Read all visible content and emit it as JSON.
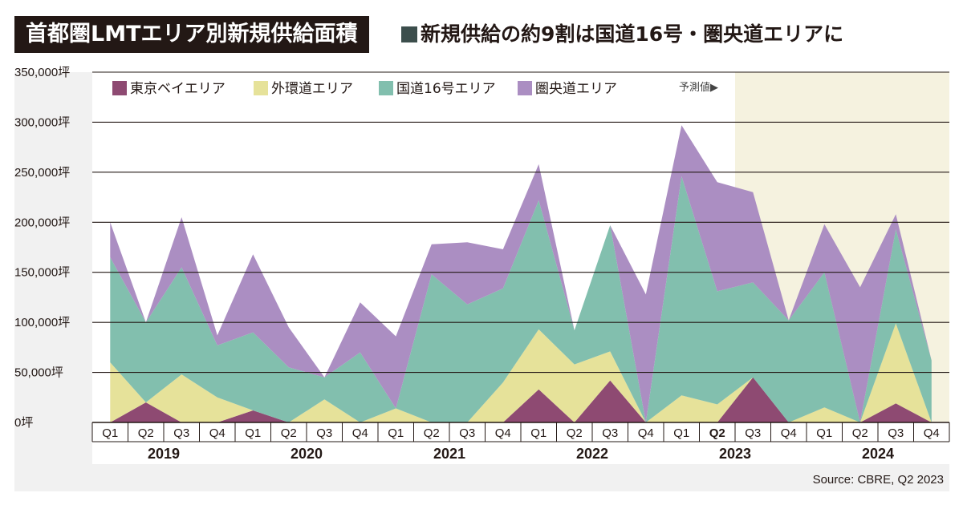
{
  "header": {
    "title": "首都圏LMTエリア別新規供給面積",
    "subtitle": "新規供給の約9割は国道16号・圏央道エリアに"
  },
  "source": "Source: CBRE, Q2 2023",
  "colors": {
    "tokyo_bay": "#8e4a72",
    "outer_ring": "#e6e29a",
    "route16": "#82bfae",
    "ken_o": "#ab8ec2",
    "forecast_bg": "#f5f2df",
    "plot_bg": "#f1f1f1",
    "grid": "#231815",
    "title_bg": "#231815",
    "subtitle_square": "#3c4e4c"
  },
  "chart_data": {
    "type": "area",
    "title": "首都圏LMTエリア別新規供給面積",
    "ylim": [
      0,
      350000
    ],
    "y_ticks": [
      0,
      50000,
      100000,
      150000,
      200000,
      250000,
      300000,
      350000
    ],
    "y_tick_labels": [
      "0坪",
      "50,000坪",
      "100,000坪",
      "150,000坪",
      "200,000坪",
      "250,000坪",
      "300,000坪",
      "350,000坪"
    ],
    "categories": [
      "Q1",
      "Q2",
      "Q3",
      "Q4",
      "Q1",
      "Q2",
      "Q3",
      "Q4",
      "Q1",
      "Q2",
      "Q3",
      "Q4",
      "Q1",
      "Q2",
      "Q3",
      "Q4",
      "Q1",
      "Q2",
      "Q3",
      "Q4",
      "Q1",
      "Q2",
      "Q3",
      "Q4"
    ],
    "highlight_index": 17,
    "years": [
      {
        "label": "2019",
        "start": 0,
        "end": 3
      },
      {
        "label": "2020",
        "start": 4,
        "end": 7
      },
      {
        "label": "2021",
        "start": 8,
        "end": 11
      },
      {
        "label": "2022",
        "start": 12,
        "end": 15
      },
      {
        "label": "2023",
        "start": 16,
        "end": 19
      },
      {
        "label": "2024",
        "start": 20,
        "end": 23
      }
    ],
    "forecast_start_index": 18,
    "forecast_label": "予測値▶",
    "series": [
      {
        "name": "東京ベイエリア",
        "color": "#8e4a72",
        "values": [
          0,
          20000,
          0,
          0,
          12000,
          0,
          0,
          0,
          0,
          0,
          0,
          0,
          33000,
          0,
          42000,
          0,
          0,
          0,
          45000,
          0,
          0,
          0,
          19000,
          0
        ]
      },
      {
        "name": "外環道エリア",
        "color": "#e6e29a",
        "values": [
          60000,
          0,
          48000,
          25000,
          0,
          0,
          23000,
          0,
          14000,
          0,
          0,
          40000,
          60000,
          58000,
          29000,
          0,
          27000,
          18000,
          0,
          0,
          15000,
          0,
          80000,
          0
        ]
      },
      {
        "name": "国道16号エリア",
        "color": "#82bfae",
        "values": [
          105000,
          80000,
          107000,
          52000,
          78000,
          55000,
          22000,
          70000,
          0,
          148000,
          118000,
          94000,
          129000,
          34000,
          126000,
          0,
          219000,
          113000,
          95000,
          102000,
          135000,
          0,
          94000,
          62000
        ]
      },
      {
        "name": "圏央道エリア",
        "color": "#ab8ec2",
        "values": [
          35000,
          0,
          50000,
          10000,
          78000,
          40000,
          0,
          50000,
          72000,
          30000,
          62000,
          39000,
          36000,
          0,
          0,
          128000,
          51000,
          109000,
          90000,
          0,
          48000,
          135000,
          15000,
          0
        ]
      }
    ],
    "xlabel": "",
    "ylabel": ""
  }
}
